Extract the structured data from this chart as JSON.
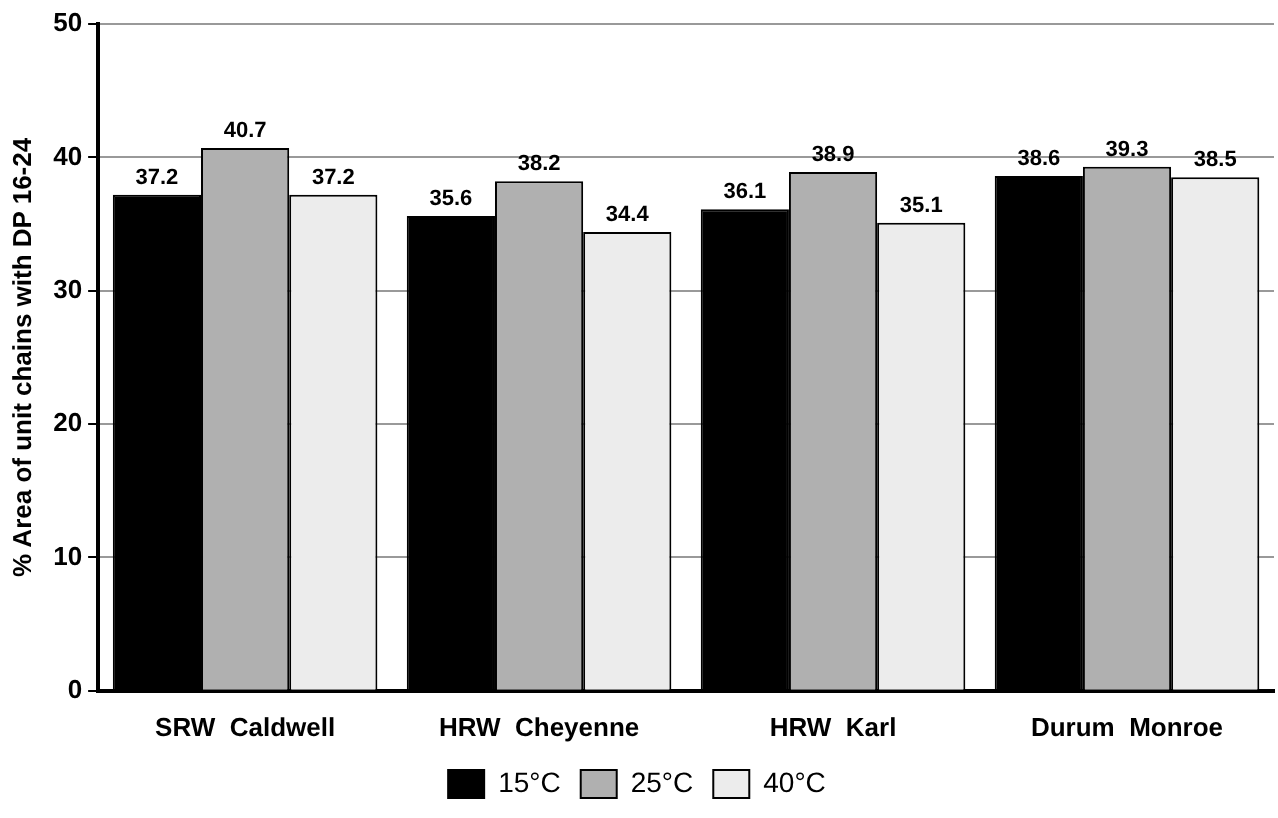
{
  "chart_data": {
    "type": "bar",
    "ylabel": "% Area of unit chains with DP 16-24",
    "categories": [
      "SRW  Caldwell",
      "HRW  Cheyenne",
      "HRW  Karl",
      "Durum  Monroe"
    ],
    "series": [
      {
        "name": "15°C",
        "color": "#000000",
        "values": [
          37.2,
          35.6,
          36.1,
          38.6
        ]
      },
      {
        "name": "25°C",
        "color": "#b0b0b0",
        "values": [
          40.7,
          38.2,
          38.9,
          39.3
        ]
      },
      {
        "name": "40°C",
        "color": "#ececec",
        "values": [
          37.2,
          34.4,
          35.1,
          38.5
        ]
      }
    ],
    "ylim": [
      0,
      50
    ],
    "yticks": [
      0,
      10,
      20,
      30,
      40,
      50
    ],
    "grid": "y",
    "legend": "bottom",
    "data_labels": true
  }
}
